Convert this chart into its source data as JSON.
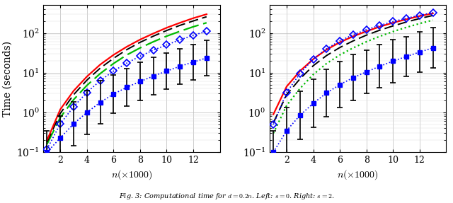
{
  "n_values": [
    1000,
    2000,
    3000,
    4000,
    5000,
    6000,
    7000,
    8000,
    9000,
    10000,
    11000,
    12000,
    13000
  ],
  "caption": "Fig. 3: Computational time for $d=0.2n$. Left: $s=0$. Right: $s=2$.",
  "xlabel": "$n(\\times1000)$",
  "ylabel": "Time (seconds)",
  "xlim": [
    700,
    14000
  ],
  "left": {
    "red_solid": [
      0.2,
      1.2,
      3.5,
      8.0,
      16.0,
      28.0,
      45.0,
      68.0,
      97.0,
      135.0,
      180.0,
      235.0,
      295.0
    ],
    "black_dashed": [
      0.18,
      0.95,
      2.8,
      6.5,
      13.0,
      23.0,
      38.0,
      58.0,
      83.0,
      115.0,
      155.0,
      200.0,
      255.0
    ],
    "green_dashed": [
      0.16,
      0.75,
      2.1,
      4.8,
      9.5,
      17.0,
      28.0,
      42.0,
      60.0,
      83.0,
      110.0,
      143.0,
      180.0
    ],
    "blue_diamond": [
      0.12,
      0.52,
      1.4,
      3.2,
      6.3,
      11.0,
      17.5,
      26.0,
      37.0,
      50.0,
      67.0,
      87.0,
      110.0
    ],
    "blue_diamond_dotted": true,
    "blue_square": [
      0.1,
      0.23,
      0.52,
      1.0,
      1.8,
      2.9,
      4.3,
      6.0,
      8.2,
      11.0,
      14.5,
      18.5,
      23.5
    ],
    "blue_square_err_factor": [
      3.5,
      3.5,
      3.5,
      3.5,
      3.5,
      3.0,
      3.0,
      3.0,
      3.0,
      2.8,
      2.8,
      2.8,
      2.8
    ]
  },
  "right": {
    "red_solid": [
      0.9,
      4.5,
      11.0,
      22.0,
      38.0,
      58.0,
      82.0,
      110.0,
      143.0,
      180.0,
      220.0,
      265.0,
      310.0
    ],
    "black_dashed": [
      0.55,
      2.8,
      7.0,
      15.0,
      27.0,
      43.0,
      63.0,
      88.0,
      117.0,
      150.0,
      188.0,
      230.0,
      275.0
    ],
    "green_dotted": [
      0.3,
      1.5,
      4.0,
      9.0,
      17.0,
      28.0,
      42.0,
      60.0,
      82.0,
      108.0,
      138.0,
      172.0,
      210.0
    ],
    "blue_diamond": [
      0.5,
      3.2,
      9.5,
      22.0,
      40.0,
      63.0,
      90.0,
      121.0,
      155.0,
      193.0,
      234.0,
      278.0,
      325.0
    ],
    "blue_square": [
      0.1,
      0.35,
      0.85,
      1.7,
      3.1,
      5.0,
      7.5,
      10.5,
      14.5,
      19.5,
      25.5,
      33.0,
      42.0
    ],
    "blue_square_err_factor": [
      3.5,
      3.8,
      4.0,
      4.0,
      4.0,
      3.8,
      3.8,
      3.5,
      3.5,
      3.5,
      3.2,
      3.2,
      3.2
    ]
  },
  "colors": {
    "red": "#ff0000",
    "black": "#000000",
    "green": "#00bb00",
    "blue": "#0000ff"
  }
}
